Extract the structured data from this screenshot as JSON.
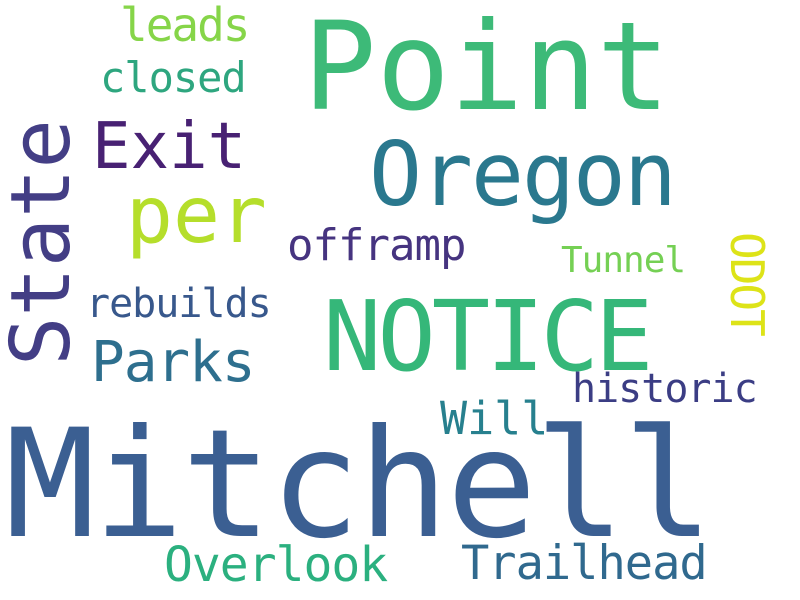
{
  "words": {
    "point": "Point",
    "mitchell": "Mitchell",
    "notice": "NOTICE",
    "oregon": "Oregon",
    "state": "State",
    "per": "per",
    "exit": "Exit",
    "parks": "Parks",
    "trailhead": "Trailhead",
    "overlook": "Overlook",
    "offramp": "offramp",
    "closed": "closed",
    "leads": "leads",
    "rebuilds": "rebuilds",
    "historic": "historic",
    "will": "Will",
    "tunnel": "Tunnel",
    "odot": "ODOT"
  },
  "colors": {
    "point": "#3dba78",
    "mitchell": "#3b5f92",
    "notice": "#35b779",
    "oregon": "#2a788e",
    "state": "#433e85",
    "per": "#b5de2b",
    "exit": "#482173",
    "parks": "#2e6f8e",
    "trailhead": "#30698e",
    "overlook": "#2bb07f",
    "offramp": "#463480",
    "closed": "#2ea67f",
    "leads": "#86d549",
    "rebuilds": "#38588c",
    "historic": "#3b3d84",
    "will": "#27808e",
    "tunnel": "#75d054",
    "odot": "#dde318"
  }
}
